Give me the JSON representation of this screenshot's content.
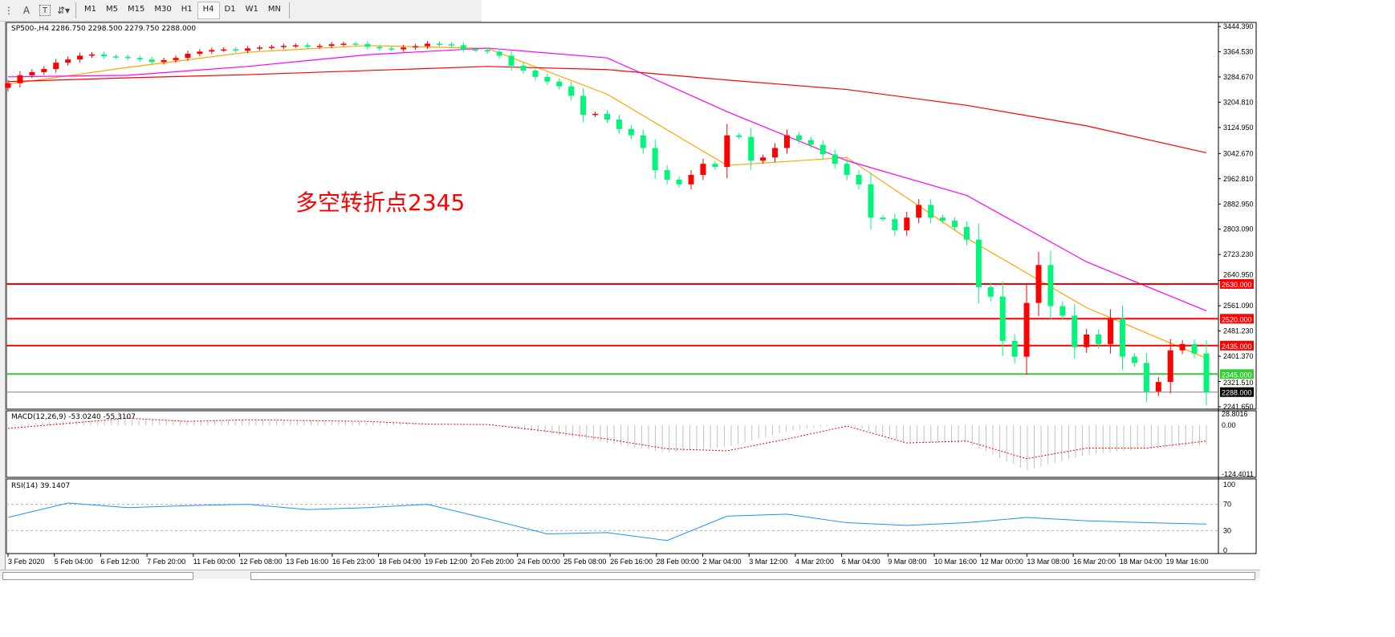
{
  "toolbar": {
    "icons": [
      "period-separator-icon",
      "text-icon",
      "text-label-icon",
      "arrows-icon"
    ],
    "icon_glyphs": {
      "text": "A",
      "label": "T"
    },
    "timeframes": [
      "M1",
      "M5",
      "M15",
      "M30",
      "H1",
      "H4",
      "D1",
      "W1",
      "MN"
    ],
    "active_timeframe": "H4"
  },
  "main": {
    "header": "SP500-,H4  2286.750 2298.500 2279.750 2288.000",
    "annotation": "多空转折点2345",
    "annotation_color": "#ff0000",
    "price_ticks": [
      "3444.390",
      "3364.530",
      "3284.670",
      "3204.810",
      "3124.950",
      "3042.670",
      "2962.810",
      "2882.950",
      "2803.090",
      "2723.230",
      "2640.950",
      "2561.090",
      "2481.230",
      "2401.370",
      "2321.510",
      "2241.650"
    ],
    "levels": [
      {
        "label": "2630.000",
        "value": 2630,
        "color": "#ff0000"
      },
      {
        "label": "2520.000",
        "value": 2520,
        "color": "#ff0000"
      },
      {
        "label": "2435.000",
        "value": 2435,
        "color": "#ff0000"
      },
      {
        "label": "2345.000",
        "value": 2345,
        "color": "#33cc33"
      }
    ],
    "current_price": {
      "label": "2288.000",
      "value": 2288
    }
  },
  "macd": {
    "label": "MACD(12,26,9) -53.0240 -55.3107",
    "ticks": [
      "28.8016",
      "0.00",
      "-124.4011"
    ]
  },
  "rsi": {
    "label": "RSI(14) 39.1407",
    "ticks": [
      "100",
      "70",
      "30",
      "0"
    ]
  },
  "time_labels": [
    "3 Feb 2020",
    "5 Feb 04:00",
    "6 Feb 12:00",
    "7 Feb 20:00",
    "11 Feb 00:00",
    "12 Feb 08:00",
    "13 Feb 16:00",
    "16 Feb 23:00",
    "18 Feb 04:00",
    "19 Feb 12:00",
    "20 Feb 20:00",
    "24 Feb 00:00",
    "25 Feb 08:00",
    "26 Feb 16:00",
    "28 Feb 00:00",
    "2 Mar 04:00",
    "3 Mar 12:00",
    "4 Mar 20:00",
    "6 Mar 04:00",
    "9 Mar 08:00",
    "10 Mar 16:00",
    "12 Mar 00:00",
    "13 Mar 08:00",
    "16 Mar 20:00",
    "18 Mar 04:00",
    "19 Mar 16:00"
  ],
  "chart_data": {
    "type": "candlestick",
    "symbol": "SP500-",
    "timeframe": "H4",
    "ylim": [
      2241.65,
      3444.39
    ],
    "up_color": "#ff0000",
    "down_color": "#00f57a",
    "closes": [
      3265,
      3290,
      3300,
      3310,
      3330,
      3340,
      3352,
      3356,
      3350,
      3348,
      3345,
      3340,
      3332,
      3338,
      3345,
      3358,
      3365,
      3370,
      3372,
      3368,
      3375,
      3378,
      3380,
      3383,
      3385,
      3380,
      3383,
      3388,
      3390,
      3389,
      3380,
      3375,
      3372,
      3378,
      3382,
      3390,
      3388,
      3385,
      3372,
      3370,
      3365,
      3352,
      3320,
      3305,
      3285,
      3270,
      3255,
      3225,
      3165,
      3168,
      3150,
      3120,
      3100,
      3060,
      2990,
      2960,
      2945,
      2975,
      3010,
      3000,
      3100,
      3095,
      3020,
      3030,
      3060,
      3100,
      3085,
      3070,
      3040,
      3010,
      2975,
      2945,
      2840,
      2835,
      2800,
      2840,
      2880,
      2840,
      2830,
      2810,
      2770,
      2620,
      2590,
      2450,
      2400,
      2570,
      2690,
      2560,
      2530,
      2430,
      2470,
      2440,
      2520,
      2400,
      2380,
      2290,
      2320,
      2420,
      2440,
      2410,
      2288
    ],
    "moving_averages": [
      {
        "color": "#ffa500",
        "values": [
          3262,
          3315,
          3363,
          3384,
          3375,
          3230,
          3005,
          3030,
          2775,
          2555,
          2395
        ]
      },
      {
        "color": "#ff00ff",
        "values": [
          3285,
          3290,
          3318,
          3355,
          3376,
          3345,
          3175,
          3020,
          2910,
          2700,
          2545
        ]
      },
      {
        "color": "#ff0000",
        "values": [
          3270,
          3282,
          3292,
          3305,
          3318,
          3308,
          3275,
          3245,
          3195,
          3130,
          3045
        ]
      }
    ],
    "macd": {
      "ylim": [
        -124.4011,
        28.8016
      ],
      "histogram": [
        2,
        10,
        16,
        12,
        14,
        13,
        9,
        5,
        2,
        -20,
        -45,
        -70,
        -55,
        -15,
        3,
        -45,
        -45,
        -115,
        -75,
        -60,
        -50
      ],
      "signal": [
        -8,
        5,
        18,
        10,
        14,
        12,
        10,
        3,
        2,
        -15,
        -35,
        -60,
        -65,
        -35,
        -2,
        -45,
        -40,
        -85,
        -58,
        -58,
        -40
      ],
      "histogram_color": "#c0c0c0",
      "signal_color": "#ff0000"
    },
    "rsi": {
      "ylim": [
        0,
        100
      ],
      "levels": [
        70,
        30
      ],
      "values": [
        50,
        72,
        65,
        68,
        70,
        62,
        65,
        70,
        48,
        25,
        27,
        15,
        52,
        55,
        42,
        38,
        42,
        50,
        45,
        42,
        40
      ],
      "color": "#1e90ff"
    }
  }
}
